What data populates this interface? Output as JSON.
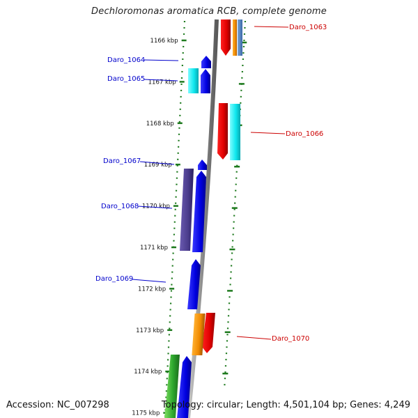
{
  "title": "Dechloromonas aromatica RCB, complete genome",
  "footer": {
    "accession": "Accession: NC_007298",
    "topology": "Topology: circular; Length: 4,501,104 bp; Genes: 4,249"
  },
  "colors": {
    "backbone": "#8c8c8c",
    "tick": "#1e7a1e",
    "forward_label": "#0000cc",
    "reverse_label": "#cc0000"
  },
  "scale": {
    "ticks": [
      "1166 kbp",
      "1167 kbp",
      "1168 kbp",
      "1169 kbp",
      "1170 kbp",
      "1171 kbp",
      "1172 kbp",
      "1173 kbp",
      "1174 kbp",
      "1175 kbp"
    ]
  },
  "gene_labels": [
    {
      "name": "Daro_1063",
      "strand": "reverse"
    },
    {
      "name": "Daro_1064",
      "strand": "forward"
    },
    {
      "name": "Daro_1065",
      "strand": "forward"
    },
    {
      "name": "Daro_1066",
      "strand": "reverse"
    },
    {
      "name": "Daro_1067",
      "strand": "forward"
    },
    {
      "name": "Daro_1068",
      "strand": "forward"
    },
    {
      "name": "Daro_1069",
      "strand": "forward"
    },
    {
      "name": "Daro_1070",
      "strand": "reverse"
    }
  ]
}
